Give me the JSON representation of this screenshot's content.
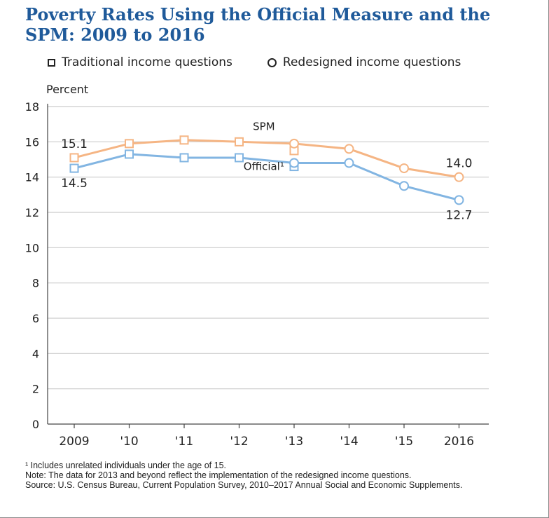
{
  "title": "Poverty Rates Using the Official Measure and the SPM: 2009 to 2016",
  "legend": {
    "traditional": "Traditional income questions",
    "redesigned": "Redesigned income questions"
  },
  "notes": {
    "footnote": "¹ Includes unrelated individuals under the age of 15.",
    "note": "Note: The data for 2013 and beyond reflect the implementation of the redesigned income questions.",
    "source": "Source: U.S. Census Bureau, Current Population Survey, 2010–2017 Annual Social and Economic Supplements."
  },
  "colors": {
    "spm": "#f5b584",
    "official": "#82b5e2",
    "title": "#1f5a9a",
    "grid": "#cccccc"
  },
  "chart_data": {
    "type": "line",
    "ylabel": "Percent",
    "ylim": [
      0,
      18
    ],
    "yticks": [
      0,
      2,
      4,
      6,
      8,
      10,
      12,
      14,
      16,
      18
    ],
    "categories": [
      "2009",
      "'10",
      "'11",
      "'12",
      "'13",
      "'14",
      "'15",
      "2016"
    ],
    "grid": true,
    "series": [
      {
        "name": "SPM",
        "key": "spm",
        "traditional": [
          15.1,
          15.9,
          16.1,
          16.0,
          15.5,
          null,
          null,
          null
        ],
        "redesigned": [
          null,
          null,
          null,
          null,
          15.9,
          15.6,
          14.5,
          14.0
        ]
      },
      {
        "name": "Official¹",
        "key": "official",
        "traditional": [
          14.5,
          15.3,
          15.1,
          15.1,
          14.6,
          null,
          null,
          null
        ],
        "redesigned": [
          null,
          null,
          null,
          null,
          14.8,
          14.8,
          13.5,
          12.7
        ]
      }
    ],
    "data_labels": [
      {
        "text": "15.1",
        "series": "spm",
        "index": 0,
        "pos": "above"
      },
      {
        "text": "14.5",
        "series": "official",
        "index": 0,
        "pos": "below"
      },
      {
        "text": "14.0",
        "series": "spm",
        "index": 7,
        "pos": "above"
      },
      {
        "text": "12.7",
        "series": "official",
        "index": 7,
        "pos": "below"
      }
    ]
  }
}
